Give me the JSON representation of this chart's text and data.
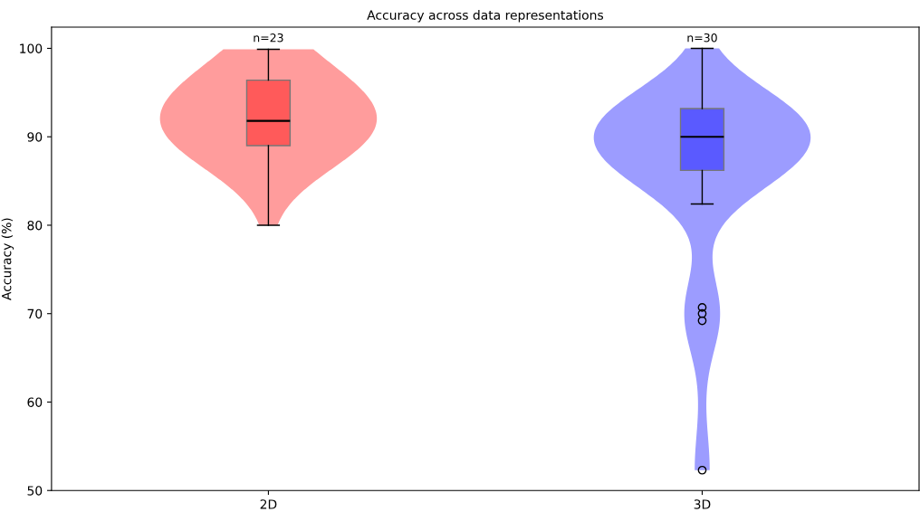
{
  "chart_data": {
    "type": "box",
    "title": "Accuracy across data representations",
    "ylabel": "Accuracy (%)",
    "categories": [
      "2D",
      "3D"
    ],
    "ylim": [
      50,
      102.4
    ],
    "yticks": [
      50,
      60,
      70,
      80,
      90,
      100
    ],
    "grid": false,
    "legend": false,
    "colors": [
      "#ff5a5a",
      "#5a5aff"
    ],
    "boxes": [
      {
        "low": 80,
        "q1": 89.0,
        "median": 91.8,
        "q3": 96.4,
        "high": 99.9
      },
      {
        "low": 82.4,
        "q1": 86.2,
        "median": 90.0,
        "q3": 93.2,
        "high": 100,
        "outliers": [
          70.7,
          70.0,
          69.2,
          52.3
        ]
      }
    ],
    "annotations": [
      "n=23",
      "n=30"
    ]
  }
}
